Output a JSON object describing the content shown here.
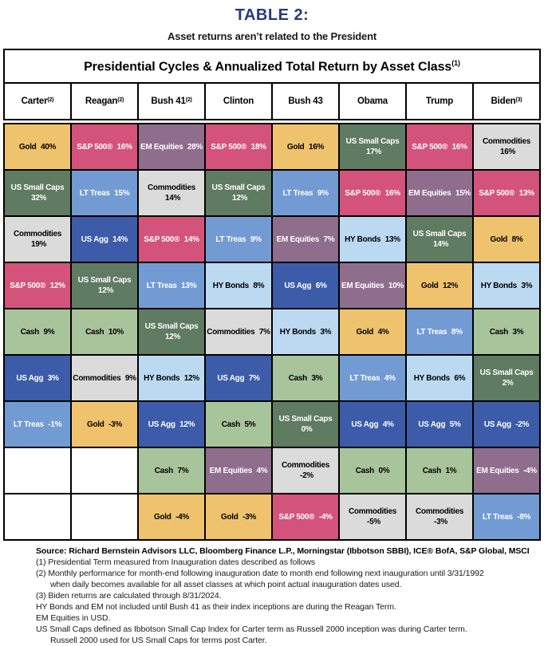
{
  "page": {
    "title": "TABLE 2:",
    "subtitle": "Asset returns aren’t related to the President"
  },
  "table": {
    "title": "Presidential Cycles & Annualized Total Return by Asset Class",
    "title_sup": "(1)",
    "columns": [
      {
        "label": "Carter",
        "sup": "(2)"
      },
      {
        "label": "Reagan",
        "sup": "(2)"
      },
      {
        "label": "Bush 41",
        "sup": "(2)"
      },
      {
        "label": "Clinton",
        "sup": ""
      },
      {
        "label": "Bush 43",
        "sup": ""
      },
      {
        "label": "Obama",
        "sup": ""
      },
      {
        "label": "Trump",
        "sup": ""
      },
      {
        "label": "Biden",
        "sup": "(3)"
      }
    ],
    "palette": {
      "gold": {
        "bg": "#EFC36E",
        "fg": "#000000"
      },
      "sp500": {
        "bg": "#D4537A",
        "fg": "#FFFFFF"
      },
      "em": {
        "bg": "#8E6D8D",
        "fg": "#FFFFFF"
      },
      "smallcap": {
        "bg": "#5F7B61",
        "fg": "#FFFFFF"
      },
      "lttreas": {
        "bg": "#739BD3",
        "fg": "#FFFFFF"
      },
      "commod": {
        "bg": "#DBDBDB",
        "fg": "#000000"
      },
      "usagg": {
        "bg": "#3C5CA9",
        "fg": "#FFFFFF"
      },
      "cash": {
        "bg": "#A8C49A",
        "fg": "#000000"
      },
      "hybond": {
        "bg": "#BCD9F2",
        "fg": "#000000"
      }
    }
  },
  "chart_data": {
    "type": "table",
    "title": "Presidential Cycles & Annualized Total Return by Asset Class",
    "categories": [
      "Carter",
      "Reagan",
      "Bush 41",
      "Clinton",
      "Bush 43",
      "Obama",
      "Trump",
      "Biden"
    ],
    "assets": [
      "Gold",
      "S&P 500®",
      "EM Equities",
      "US Small Caps",
      "LT Treas",
      "Commodities",
      "US Agg",
      "Cash",
      "HY Bonds"
    ],
    "rows": [
      [
        {
          "a": "Gold",
          "v": "40%",
          "k": "gold"
        },
        {
          "a": "S&P 500®",
          "v": "16%",
          "k": "sp500"
        },
        {
          "a": "EM Equities",
          "v": "28%",
          "k": "em"
        },
        {
          "a": "S&P 500®",
          "v": "18%",
          "k": "sp500"
        },
        {
          "a": "Gold",
          "v": "16%",
          "k": "gold"
        },
        {
          "a": "US Small Caps",
          "v": "17%",
          "k": "smallcap"
        },
        {
          "a": "S&P 500®",
          "v": "16%",
          "k": "sp500"
        },
        {
          "a": "Commodities",
          "v": "16%",
          "k": "commod"
        }
      ],
      [
        {
          "a": "US Small Caps",
          "v": "32%",
          "k": "smallcap"
        },
        {
          "a": "LT Treas",
          "v": "15%",
          "k": "lttreas"
        },
        {
          "a": "Commodities",
          "v": "14%",
          "k": "commod"
        },
        {
          "a": "US Small Caps",
          "v": "12%",
          "k": "smallcap"
        },
        {
          "a": "LT Treas",
          "v": "9%",
          "k": "lttreas"
        },
        {
          "a": "S&P 500®",
          "v": "16%",
          "k": "sp500"
        },
        {
          "a": "EM Equities",
          "v": "15%",
          "k": "em"
        },
        {
          "a": "S&P 500®",
          "v": "13%",
          "k": "sp500"
        }
      ],
      [
        {
          "a": "Commodities",
          "v": "19%",
          "k": "commod"
        },
        {
          "a": "US Agg",
          "v": "14%",
          "k": "usagg"
        },
        {
          "a": "S&P 500®",
          "v": "14%",
          "k": "sp500"
        },
        {
          "a": "LT Treas",
          "v": "9%",
          "k": "lttreas"
        },
        {
          "a": "EM Equities",
          "v": "7%",
          "k": "em"
        },
        {
          "a": "HY Bonds",
          "v": "13%",
          "k": "hybond"
        },
        {
          "a": "US Small Caps",
          "v": "14%",
          "k": "smallcap"
        },
        {
          "a": "Gold",
          "v": "8%",
          "k": "gold"
        }
      ],
      [
        {
          "a": "S&P 500®",
          "v": "12%",
          "k": "sp500"
        },
        {
          "a": "US Small Caps",
          "v": "12%",
          "k": "smallcap"
        },
        {
          "a": "LT Treas",
          "v": "13%",
          "k": "lttreas"
        },
        {
          "a": "HY Bonds",
          "v": "8%",
          "k": "hybond"
        },
        {
          "a": "US Agg",
          "v": "6%",
          "k": "usagg"
        },
        {
          "a": "EM Equities",
          "v": "10%",
          "k": "em"
        },
        {
          "a": "Gold",
          "v": "12%",
          "k": "gold"
        },
        {
          "a": "HY Bonds",
          "v": "3%",
          "k": "hybond"
        }
      ],
      [
        {
          "a": "Cash",
          "v": "9%",
          "k": "cash"
        },
        {
          "a": "Cash",
          "v": "10%",
          "k": "cash"
        },
        {
          "a": "US Small Caps",
          "v": "12%",
          "k": "smallcap"
        },
        {
          "a": "Commodities",
          "v": "7%",
          "k": "commod"
        },
        {
          "a": "HY Bonds",
          "v": "3%",
          "k": "hybond"
        },
        {
          "a": "Gold",
          "v": "4%",
          "k": "gold"
        },
        {
          "a": "LT Treas",
          "v": "8%",
          "k": "lttreas"
        },
        {
          "a": "Cash",
          "v": "3%",
          "k": "cash"
        }
      ],
      [
        {
          "a": "US Agg",
          "v": "3%",
          "k": "usagg"
        },
        {
          "a": "Commodities",
          "v": "9%",
          "k": "commod"
        },
        {
          "a": "HY Bonds",
          "v": "12%",
          "k": "hybond"
        },
        {
          "a": "US Agg",
          "v": "7%",
          "k": "usagg"
        },
        {
          "a": "Cash",
          "v": "3%",
          "k": "cash"
        },
        {
          "a": "LT Treas",
          "v": "4%",
          "k": "lttreas"
        },
        {
          "a": "HY Bonds",
          "v": "6%",
          "k": "hybond"
        },
        {
          "a": "US Small Caps",
          "v": "2%",
          "k": "smallcap"
        }
      ],
      [
        {
          "a": "LT Treas",
          "v": "-1%",
          "k": "lttreas"
        },
        {
          "a": "Gold",
          "v": "-3%",
          "k": "gold"
        },
        {
          "a": "US Agg",
          "v": "12%",
          "k": "usagg"
        },
        {
          "a": "Cash",
          "v": "5%",
          "k": "cash"
        },
        {
          "a": "US Small Caps",
          "v": "0%",
          "k": "smallcap"
        },
        {
          "a": "US Agg",
          "v": "4%",
          "k": "usagg"
        },
        {
          "a": "US Agg",
          "v": "5%",
          "k": "usagg"
        },
        {
          "a": "US Agg",
          "v": "-2%",
          "k": "usagg"
        }
      ],
      [
        null,
        null,
        {
          "a": "Cash",
          "v": "7%",
          "k": "cash"
        },
        {
          "a": "EM Equities",
          "v": "4%",
          "k": "em"
        },
        {
          "a": "Commodities",
          "v": "-2%",
          "k": "commod"
        },
        {
          "a": "Cash",
          "v": "0%",
          "k": "cash"
        },
        {
          "a": "Cash",
          "v": "1%",
          "k": "cash"
        },
        {
          "a": "EM Equities",
          "v": "-4%",
          "k": "em"
        }
      ],
      [
        null,
        null,
        {
          "a": "Gold",
          "v": "-4%",
          "k": "gold"
        },
        {
          "a": "Gold",
          "v": "-3%",
          "k": "gold"
        },
        {
          "a": "S&P 500®",
          "v": "-4%",
          "k": "sp500"
        },
        {
          "a": "Commodities",
          "v": "-5%",
          "k": "commod"
        },
        {
          "a": "Commodities",
          "v": "-3%",
          "k": "commod"
        },
        {
          "a": "LT Treas",
          "v": "-8%",
          "k": "lttreas"
        }
      ]
    ]
  },
  "footnotes": [
    "Source: Richard Bernstein Advisors LLC, Bloomberg Finance L.P., Morningstar (Ibbotson SBBI), ICE® BofA, S&P Global, MSCI",
    "(1) Presidential Term measured from Inauguration dates described as follows",
    "(2) Monthly performance for month-end following inauguration date to month end following next inauguration until 3/31/1992",
    "when daily becomes available for all asset classes at which point actual inauguration dates used.",
    "(3) Biden returns are calculated through 8/31/2024.",
    "HY Bonds and EM not included until Bush 41 as their index inceptions are during the Reagan Term.",
    "EM Equities in USD.",
    "US Small Caps defined as Ibbotson Small Cap Index for Carter term as Russell 2000 inception was during Carter term.",
    "Russell 2000 used for US Small Caps for terms post Carter."
  ]
}
